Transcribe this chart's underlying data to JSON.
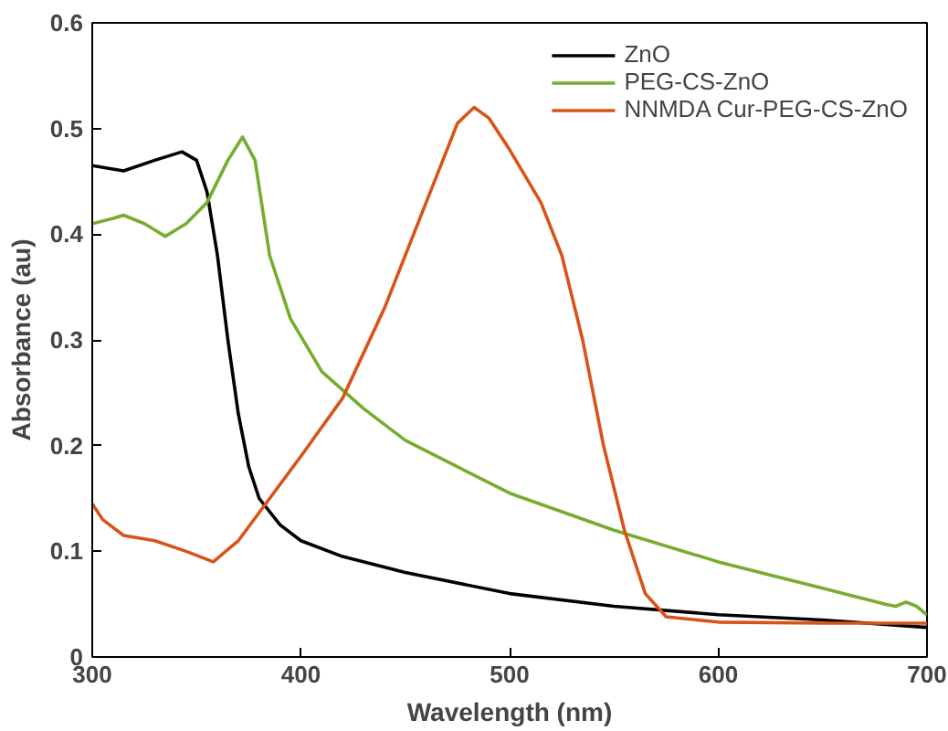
{
  "chart_data": {
    "type": "line",
    "xlabel": "Wavelength (nm)",
    "ylabel": "Absorbance (au)",
    "xlim": [
      300,
      700
    ],
    "xticks": [
      300,
      400,
      500,
      600,
      700
    ],
    "ylim": [
      0,
      0.6
    ],
    "yticks": [
      0,
      0.1,
      0.2,
      0.3,
      0.4,
      0.5,
      0.6
    ],
    "grid": false,
    "legend": "top right",
    "line_style": "solid",
    "marker": "none",
    "series": [
      {
        "name": "ZnO",
        "color": "#000000",
        "x": [
          300,
          315,
          330,
          343,
          350,
          355,
          360,
          365,
          370,
          375,
          380,
          390,
          400,
          420,
          450,
          500,
          550,
          600,
          650,
          700
        ],
        "values": [
          0.465,
          0.46,
          0.47,
          0.478,
          0.47,
          0.44,
          0.38,
          0.3,
          0.23,
          0.18,
          0.15,
          0.125,
          0.11,
          0.095,
          0.08,
          0.06,
          0.048,
          0.04,
          0.035,
          0.028
        ]
      },
      {
        "name": "PEG-CS-ZnO",
        "color": "#77ac30",
        "x": [
          300,
          310,
          315,
          325,
          335,
          345,
          355,
          365,
          372,
          378,
          385,
          395,
          410,
          430,
          450,
          500,
          550,
          600,
          650,
          680,
          685,
          690,
          695,
          700
        ],
        "values": [
          0.41,
          0.415,
          0.418,
          0.41,
          0.398,
          0.41,
          0.43,
          0.47,
          0.492,
          0.47,
          0.38,
          0.32,
          0.27,
          0.235,
          0.205,
          0.155,
          0.12,
          0.09,
          0.065,
          0.05,
          0.048,
          0.052,
          0.048,
          0.04
        ]
      },
      {
        "name": "NNMDA Cur-PEG-CS-ZnO",
        "color": "#d95319",
        "x": [
          300,
          305,
          315,
          330,
          345,
          358,
          370,
          385,
          400,
          420,
          440,
          460,
          475,
          483,
          490,
          500,
          515,
          525,
          535,
          545,
          555,
          565,
          575,
          600,
          650,
          700
        ],
        "values": [
          0.145,
          0.13,
          0.115,
          0.11,
          0.1,
          0.09,
          0.11,
          0.15,
          0.19,
          0.245,
          0.33,
          0.43,
          0.505,
          0.52,
          0.51,
          0.48,
          0.43,
          0.38,
          0.3,
          0.2,
          0.12,
          0.06,
          0.038,
          0.033,
          0.032,
          0.032
        ]
      }
    ]
  }
}
